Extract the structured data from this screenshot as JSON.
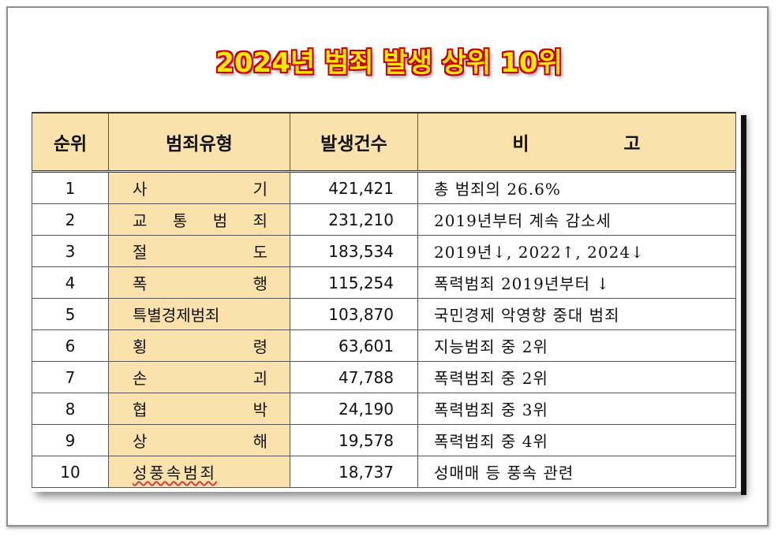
{
  "title": "2024년 범죄 발생 상위 10위",
  "table": {
    "headers": {
      "rank": "순위",
      "type": "범죄유형",
      "count": "발생건수",
      "note_part1": "비",
      "note_part2": "고"
    },
    "rows": [
      {
        "rank": "1",
        "type_chars": [
          "사",
          "기"
        ],
        "count": "421,421",
        "note": "총 범죄의 26.6%"
      },
      {
        "rank": "2",
        "type_chars": [
          "교",
          "통",
          "범",
          "죄"
        ],
        "count": "231,210",
        "note": "2019년부터 계속 감소세"
      },
      {
        "rank": "3",
        "type_chars": [
          "절",
          "도"
        ],
        "count": "183,534",
        "note": "2019년↓, 2022↑, 2024↓"
      },
      {
        "rank": "4",
        "type_chars": [
          "폭",
          "행"
        ],
        "count": "115,254",
        "note": "폭력범죄 2019년부터 ↓"
      },
      {
        "rank": "5",
        "type": "특별경제범죄",
        "count": "103,870",
        "note": "국민경제 악영향 중대 범죄"
      },
      {
        "rank": "6",
        "type_chars": [
          "횡",
          "령"
        ],
        "count": "63,601",
        "note": "지능범죄 중 2위"
      },
      {
        "rank": "7",
        "type_chars": [
          "손",
          "괴"
        ],
        "count": "47,788",
        "note": "폭력범죄 중 2위"
      },
      {
        "rank": "8",
        "type_chars": [
          "협",
          "박"
        ],
        "count": "24,190",
        "note": "폭력범죄 중 3위"
      },
      {
        "rank": "9",
        "type_chars": [
          "상",
          "해"
        ],
        "count": "19,578",
        "note": "폭력범죄 중 4위"
      },
      {
        "rank": "10",
        "type": "성풍속범죄",
        "count": "18,737",
        "note": "성매매 등 풍속 관련"
      }
    ]
  }
}
